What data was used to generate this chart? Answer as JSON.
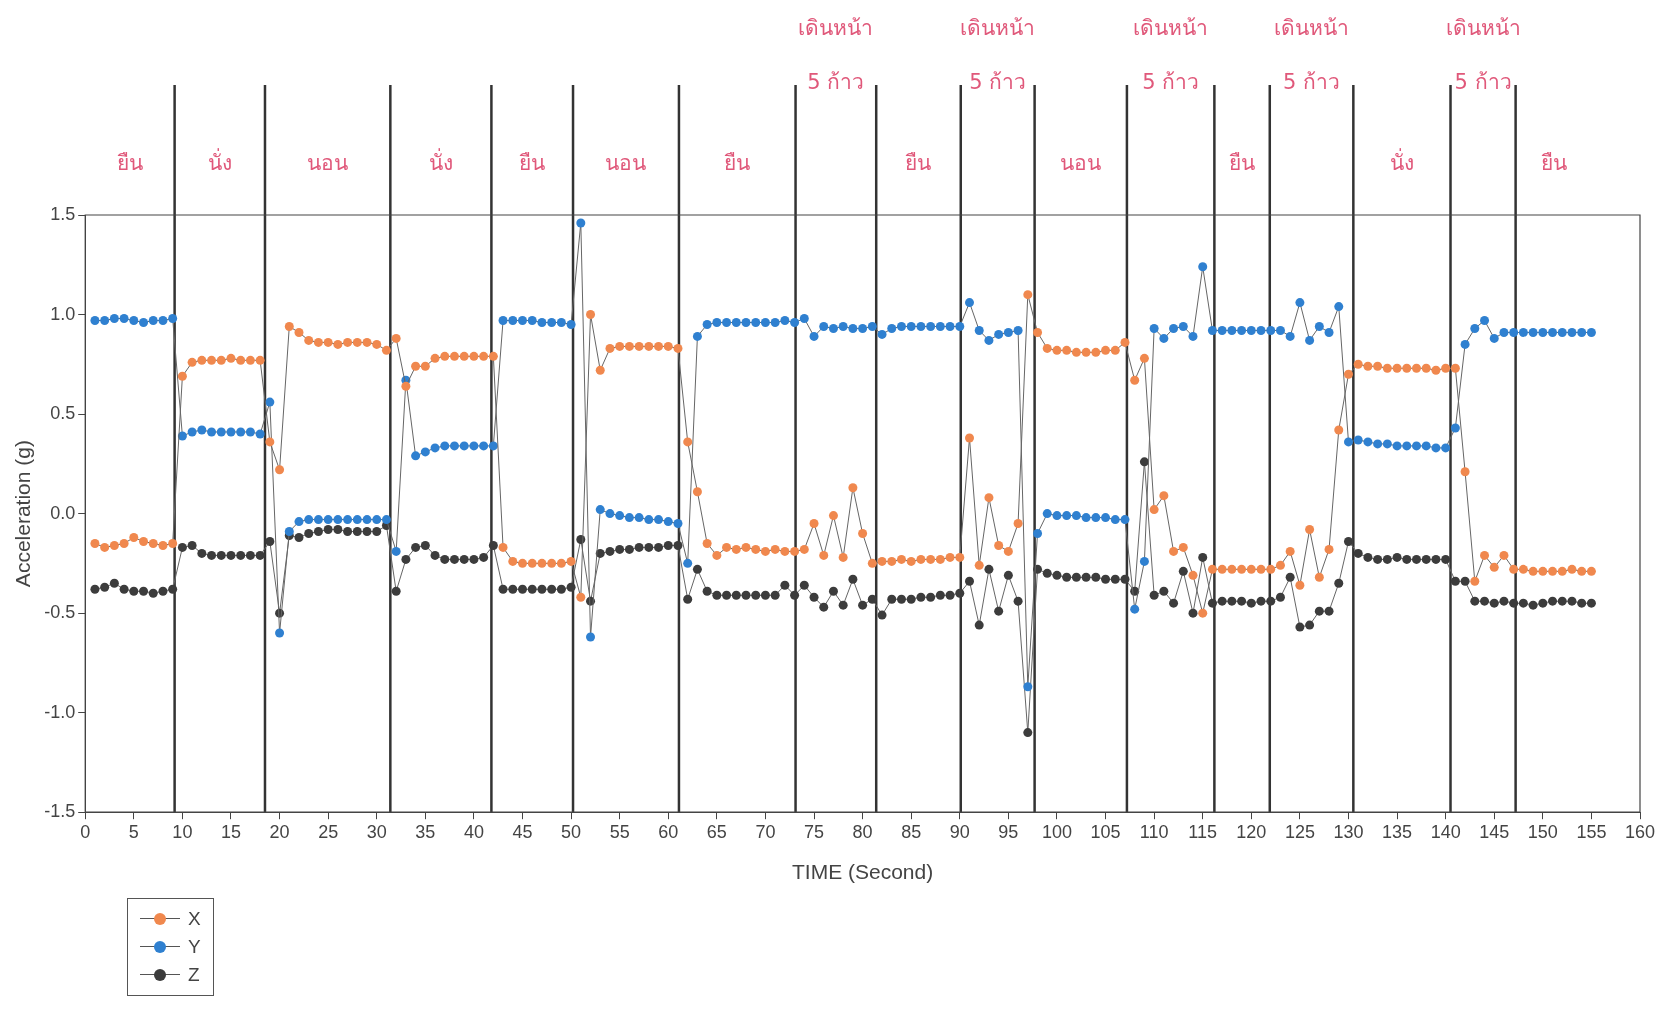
{
  "chart_data": {
    "type": "line",
    "xlabel": "TIME (Second)",
    "ylabel": "Acceleration (g)",
    "x": [
      1,
      2,
      3,
      4,
      5,
      6,
      7,
      8,
      9,
      10,
      11,
      12,
      13,
      14,
      15,
      16,
      17,
      18,
      19,
      20,
      21,
      22,
      23,
      24,
      25,
      26,
      27,
      28,
      29,
      30,
      31,
      32,
      33,
      34,
      35,
      36,
      37,
      38,
      39,
      40,
      41,
      42,
      43,
      44,
      45,
      46,
      47,
      48,
      49,
      50,
      51,
      52,
      53,
      54,
      55,
      56,
      57,
      58,
      59,
      60,
      61,
      62,
      63,
      64,
      65,
      66,
      67,
      68,
      69,
      70,
      71,
      72,
      73,
      74,
      75,
      76,
      77,
      78,
      79,
      80,
      81,
      82,
      83,
      84,
      85,
      86,
      87,
      88,
      89,
      90,
      91,
      92,
      93,
      94,
      95,
      96,
      97,
      98,
      99,
      100,
      101,
      102,
      103,
      104,
      105,
      106,
      107,
      108,
      109,
      110,
      111,
      112,
      113,
      114,
      115,
      116,
      117,
      118,
      119,
      120,
      121,
      122,
      123,
      124,
      125,
      126,
      127,
      128,
      129,
      130,
      131,
      132,
      133,
      134,
      135,
      136,
      137,
      138,
      139,
      140,
      141,
      142,
      143,
      144,
      145,
      146,
      147,
      148,
      149,
      150,
      151,
      152,
      153,
      154,
      155
    ],
    "series": [
      {
        "name": "X",
        "color": "#f0884e",
        "values": [
          -0.15,
          -0.17,
          -0.16,
          -0.15,
          -0.12,
          -0.14,
          -0.15,
          -0.16,
          -0.15,
          0.69,
          0.76,
          0.77,
          0.77,
          0.77,
          0.78,
          0.77,
          0.77,
          0.77,
          0.36,
          0.22,
          0.94,
          0.91,
          0.87,
          0.86,
          0.86,
          0.85,
          0.86,
          0.86,
          0.86,
          0.85,
          0.82,
          0.88,
          0.64,
          0.74,
          0.74,
          0.78,
          0.79,
          0.79,
          0.79,
          0.79,
          0.79,
          0.79,
          -0.17,
          -0.24,
          -0.25,
          -0.25,
          -0.25,
          -0.25,
          -0.25,
          -0.24,
          -0.42,
          1.0,
          0.72,
          0.83,
          0.84,
          0.84,
          0.84,
          0.84,
          0.84,
          0.84,
          0.83,
          0.36,
          0.11,
          -0.15,
          -0.21,
          -0.17,
          -0.18,
          -0.17,
          -0.18,
          -0.19,
          -0.18,
          -0.19,
          -0.19,
          -0.18,
          -0.05,
          -0.21,
          -0.01,
          -0.22,
          0.13,
          -0.1,
          -0.25,
          -0.24,
          -0.24,
          -0.23,
          -0.24,
          -0.23,
          -0.23,
          -0.23,
          -0.22,
          -0.22,
          0.38,
          -0.26,
          0.08,
          -0.16,
          -0.19,
          -0.05,
          1.1,
          0.91,
          0.83,
          0.82,
          0.82,
          0.81,
          0.81,
          0.81,
          0.82,
          0.82,
          0.86,
          0.67,
          0.78,
          0.02,
          0.09,
          -0.19,
          -0.17,
          -0.31,
          -0.5,
          -0.28,
          -0.28,
          -0.28,
          -0.28,
          -0.28,
          -0.28,
          -0.28,
          -0.26,
          -0.19,
          -0.36,
          -0.08,
          -0.32,
          -0.18,
          0.42,
          0.7,
          0.75,
          0.74,
          0.74,
          0.73,
          0.73,
          0.73,
          0.73,
          0.73,
          0.72,
          0.73,
          0.73,
          0.21,
          -0.34,
          -0.21,
          -0.27,
          -0.21,
          -0.28,
          -0.28,
          -0.29,
          -0.29,
          -0.29,
          -0.29,
          -0.28,
          -0.29,
          -0.29
        ]
      },
      {
        "name": "Y",
        "color": "#2f80d0",
        "values": [
          0.97,
          0.97,
          0.98,
          0.98,
          0.97,
          0.96,
          0.97,
          0.97,
          0.98,
          0.39,
          0.41,
          0.42,
          0.41,
          0.41,
          0.41,
          0.41,
          0.41,
          0.4,
          0.56,
          -0.6,
          -0.09,
          -0.04,
          -0.03,
          -0.03,
          -0.03,
          -0.03,
          -0.03,
          -0.03,
          -0.03,
          -0.03,
          -0.03,
          -0.19,
          0.67,
          0.29,
          0.31,
          0.33,
          0.34,
          0.34,
          0.34,
          0.34,
          0.34,
          0.34,
          0.97,
          0.97,
          0.97,
          0.97,
          0.96,
          0.96,
          0.96,
          0.95,
          1.46,
          -0.62,
          0.02,
          0.0,
          -0.01,
          -0.02,
          -0.02,
          -0.03,
          -0.03,
          -0.04,
          -0.05,
          -0.25,
          0.89,
          0.95,
          0.96,
          0.96,
          0.96,
          0.96,
          0.96,
          0.96,
          0.96,
          0.97,
          0.96,
          0.98,
          0.89,
          0.94,
          0.93,
          0.94,
          0.93,
          0.93,
          0.94,
          0.9,
          0.93,
          0.94,
          0.94,
          0.94,
          0.94,
          0.94,
          0.94,
          0.94,
          1.06,
          0.92,
          0.87,
          0.9,
          0.91,
          0.92,
          -0.87,
          -0.1,
          0.0,
          -0.01,
          -0.01,
          -0.01,
          -0.02,
          -0.02,
          -0.02,
          -0.03,
          -0.03,
          -0.48,
          -0.24,
          0.93,
          0.88,
          0.93,
          0.94,
          0.89,
          1.24,
          0.92,
          0.92,
          0.92,
          0.92,
          0.92,
          0.92,
          0.92,
          0.92,
          0.89,
          1.06,
          0.87,
          0.94,
          0.91,
          1.04,
          0.36,
          0.37,
          0.36,
          0.35,
          0.35,
          0.34,
          0.34,
          0.34,
          0.34,
          0.33,
          0.33,
          0.43,
          0.85,
          0.93,
          0.97,
          0.88,
          0.91,
          0.91,
          0.91,
          0.91,
          0.91,
          0.91,
          0.91,
          0.91,
          0.91,
          0.91
        ]
      },
      {
        "name": "Z",
        "color": "#3c3c3c",
        "values": [
          -0.38,
          -0.37,
          -0.35,
          -0.38,
          -0.39,
          -0.39,
          -0.4,
          -0.39,
          -0.38,
          -0.17,
          -0.16,
          -0.2,
          -0.21,
          -0.21,
          -0.21,
          -0.21,
          -0.21,
          -0.21,
          -0.14,
          -0.5,
          -0.11,
          -0.12,
          -0.1,
          -0.09,
          -0.08,
          -0.08,
          -0.09,
          -0.09,
          -0.09,
          -0.09,
          -0.06,
          -0.39,
          -0.23,
          -0.17,
          -0.16,
          -0.21,
          -0.23,
          -0.23,
          -0.23,
          -0.23,
          -0.22,
          -0.16,
          -0.38,
          -0.38,
          -0.38,
          -0.38,
          -0.38,
          -0.38,
          -0.38,
          -0.37,
          -0.13,
          -0.44,
          -0.2,
          -0.19,
          -0.18,
          -0.18,
          -0.17,
          -0.17,
          -0.17,
          -0.16,
          -0.16,
          -0.43,
          -0.28,
          -0.39,
          -0.41,
          -0.41,
          -0.41,
          -0.41,
          -0.41,
          -0.41,
          -0.41,
          -0.36,
          -0.41,
          -0.36,
          -0.42,
          -0.47,
          -0.39,
          -0.46,
          -0.33,
          -0.46,
          -0.43,
          -0.51,
          -0.43,
          -0.43,
          -0.43,
          -0.42,
          -0.42,
          -0.41,
          -0.41,
          -0.4,
          -0.34,
          -0.56,
          -0.28,
          -0.49,
          -0.31,
          -0.44,
          -1.1,
          -0.28,
          -0.3,
          -0.31,
          -0.32,
          -0.32,
          -0.32,
          -0.32,
          -0.33,
          -0.33,
          -0.33,
          -0.39,
          0.26,
          -0.41,
          -0.39,
          -0.45,
          -0.29,
          -0.5,
          -0.22,
          -0.45,
          -0.44,
          -0.44,
          -0.44,
          -0.45,
          -0.44,
          -0.44,
          -0.42,
          -0.32,
          -0.57,
          -0.56,
          -0.49,
          -0.49,
          -0.35,
          -0.14,
          -0.2,
          -0.22,
          -0.23,
          -0.23,
          -0.22,
          -0.23,
          -0.23,
          -0.23,
          -0.23,
          -0.23,
          -0.34,
          -0.34,
          -0.44,
          -0.44,
          -0.45,
          -0.44,
          -0.45,
          -0.45,
          -0.46,
          -0.45,
          -0.44,
          -0.44,
          -0.44,
          -0.45,
          -0.45
        ]
      }
    ],
    "xlim": [
      0,
      160
    ],
    "xticks": [
      0,
      5,
      10,
      15,
      20,
      25,
      30,
      35,
      40,
      45,
      50,
      55,
      60,
      65,
      70,
      75,
      80,
      85,
      90,
      95,
      100,
      105,
      110,
      115,
      120,
      125,
      130,
      135,
      140,
      145,
      150,
      155,
      160
    ],
    "ylim": [
      -1.5,
      1.5
    ],
    "yticks": [
      {
        "value": -1.5,
        "label": "-1.5"
      },
      {
        "value": -1,
        "label": "-1.0"
      },
      {
        "value": -0.5,
        "label": "-0.5"
      },
      {
        "value": 0,
        "label": "0.0"
      },
      {
        "value": 0.5,
        "label": "0.5"
      },
      {
        "value": 1,
        "label": "1.0"
      },
      {
        "value": 1.5,
        "label": "1.5"
      }
    ],
    "ref_lines": [
      {
        "axis": "x",
        "value": 9.2,
        "color": "#333333"
      },
      {
        "axis": "x",
        "value": 18.5,
        "color": "#333333"
      },
      {
        "axis": "x",
        "value": 31.4,
        "color": "#333333"
      },
      {
        "axis": "x",
        "value": 41.8,
        "color": "#333333"
      },
      {
        "axis": "x",
        "value": 50.2,
        "color": "#333333"
      },
      {
        "axis": "x",
        "value": 61.1,
        "color": "#333333"
      },
      {
        "axis": "x",
        "value": 73.1,
        "color": "#333333"
      },
      {
        "axis": "x",
        "value": 81.4,
        "color": "#333333"
      },
      {
        "axis": "x",
        "value": 90.1,
        "color": "#333333"
      },
      {
        "axis": "x",
        "value": 97.7,
        "color": "#333333"
      },
      {
        "axis": "x",
        "value": 107.2,
        "color": "#333333"
      },
      {
        "axis": "x",
        "value": 116.2,
        "color": "#333333"
      },
      {
        "axis": "x",
        "value": 121.9,
        "color": "#333333"
      },
      {
        "axis": "x",
        "value": 130.5,
        "color": "#333333"
      },
      {
        "axis": "x",
        "value": 140.5,
        "color": "#333333"
      },
      {
        "axis": "x",
        "value": 147.2,
        "color": "#333333"
      }
    ],
    "annotations": [
      "ยืน",
      "นั่ง",
      "นอน",
      "นั่ง",
      "ยืน",
      "นอน",
      "ยืน",
      "เดินหน้า 5 ก้าว",
      "ยืน",
      "เดินหน้า 5 ก้าว",
      "นอน",
      "เดินหน้า 5 ก้าว",
      "ยืน",
      "เดินหน้า 5 ก้าว",
      "นั่ง",
      "เดินหน้า 5 ก้าว",
      "ยืน"
    ],
    "legend": "bottom left",
    "grid": false,
    "marker": "circle",
    "line_style": "solid"
  }
}
